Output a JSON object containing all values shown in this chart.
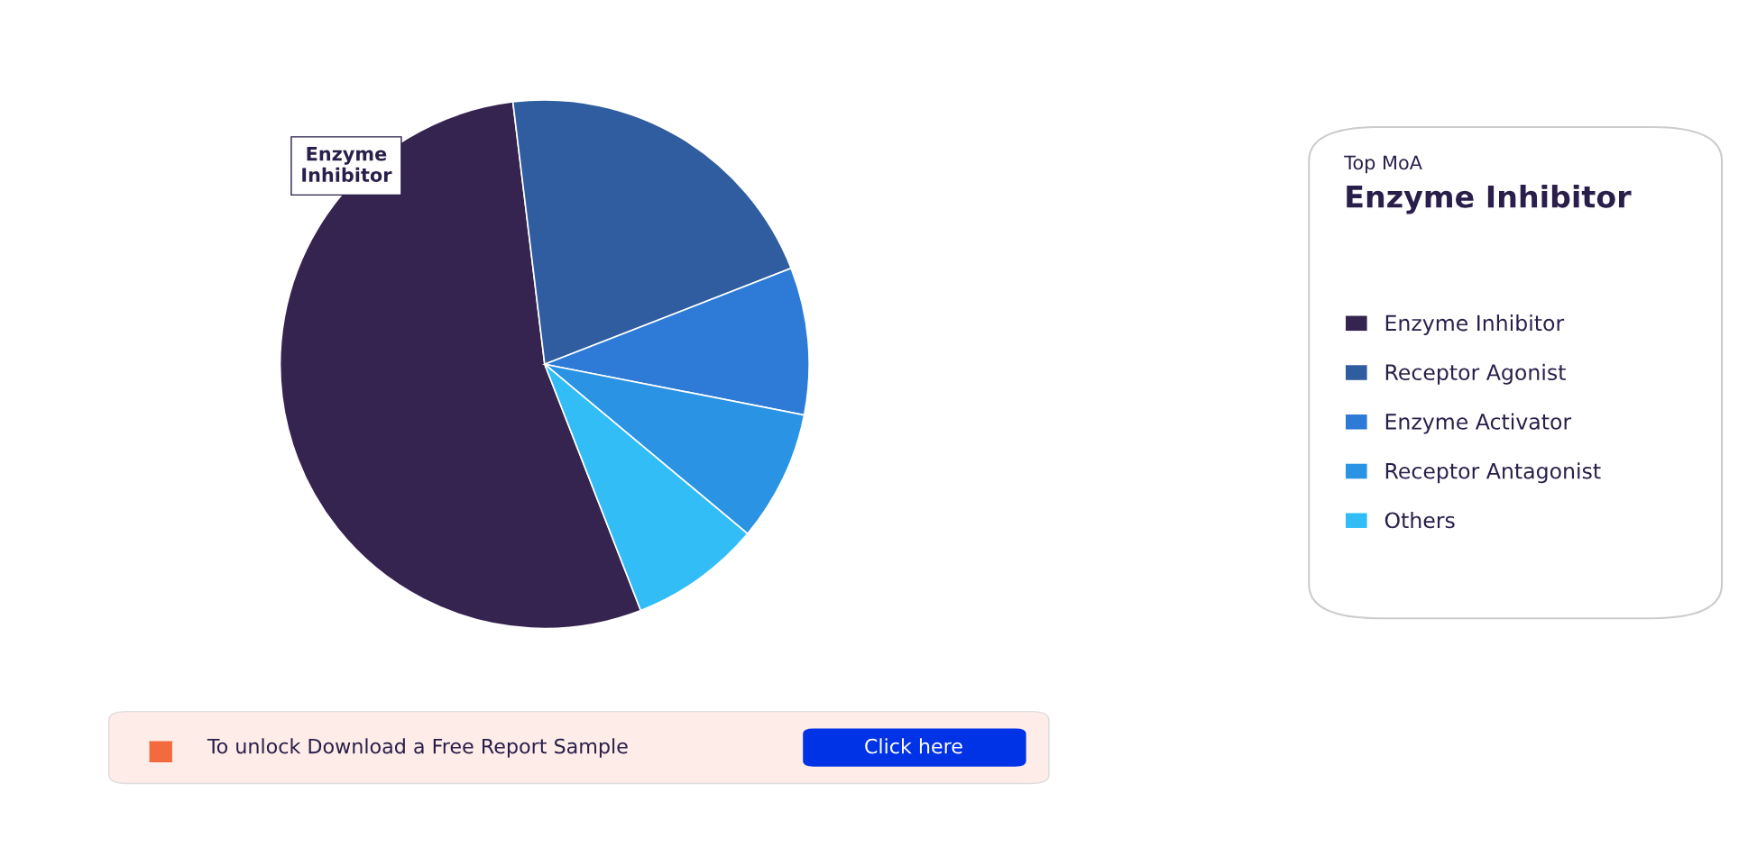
{
  "chart_data": {
    "type": "pie",
    "categories": [
      "Enzyme Inhibitor",
      "Receptor Agonist",
      "Enzyme Activator",
      "Receptor Antagonist",
      "Others"
    ],
    "values": [
      54,
      21,
      9,
      8,
      8
    ],
    "colors": [
      "#352350",
      "#2f5da0",
      "#2d7bd6",
      "#2b93e3",
      "#33bdf7"
    ],
    "legend": "right",
    "legend_title": "Top MoA",
    "annotations": [
      "Enzyme Inhibitor",
      "Enzyme Inhibitor",
      "To unlock Download a Free Report Sample",
      "Click here"
    ]
  }
}
